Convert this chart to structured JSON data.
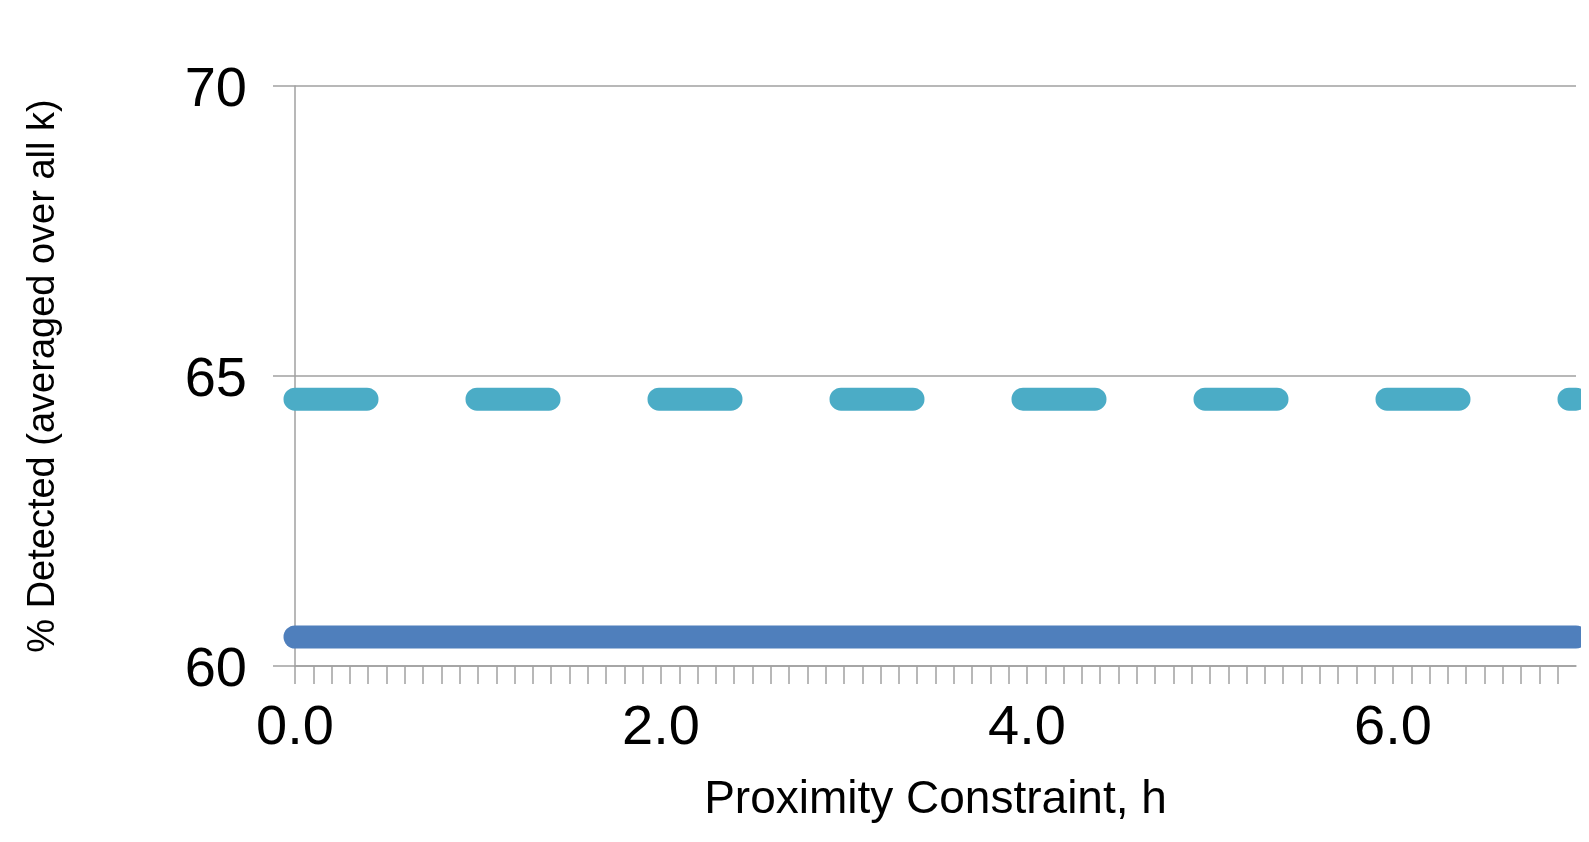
{
  "chart_data": {
    "type": "line",
    "xlabel": "Proximity Constraint, h",
    "ylabel": "% Detected (averaged over all k)",
    "x": [
      0,
      7
    ],
    "series": [
      {
        "color": "#4bacc6",
        "values": [
          64.6,
          64.6
        ],
        "line_style": "dashed"
      },
      {
        "color": "#4f7fbc",
        "values": [
          60.5,
          60.5
        ],
        "line_style": "solid"
      }
    ],
    "xlim": [
      0,
      7
    ],
    "xticks": [
      {
        "value": 0,
        "label": "0.0"
      },
      {
        "value": 2,
        "label": "2.0"
      },
      {
        "value": 4,
        "label": "4.0"
      },
      {
        "value": 6,
        "label": "6.0"
      }
    ],
    "ylim": [
      60,
      70
    ],
    "yticks": [
      60,
      65,
      70
    ],
    "grid": "y"
  }
}
